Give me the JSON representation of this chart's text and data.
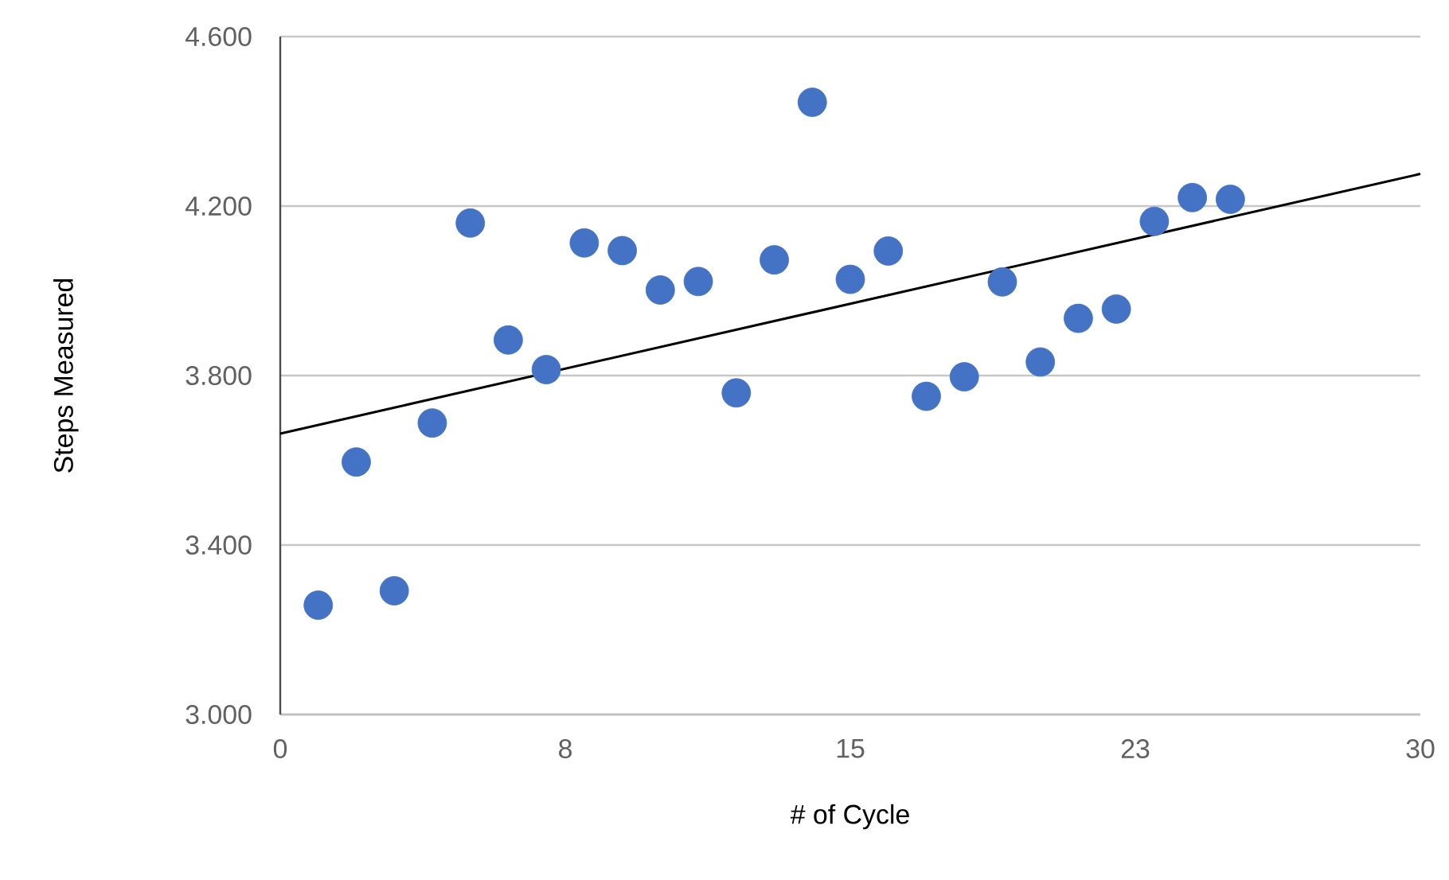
{
  "chart_data": {
    "type": "scatter",
    "xlabel": "# of Cycle",
    "ylabel": "Steps Measured",
    "xlim": [
      0,
      30
    ],
    "xticks": [
      0,
      {
        "value": 7.5,
        "label": "8"
      },
      15,
      {
        "value": 22.5,
        "label": "23"
      },
      30
    ],
    "ylim": [
      3000,
      4600
    ],
    "yticks": [
      {
        "value": 3000,
        "label": "3.000"
      },
      {
        "value": 3400,
        "label": "3.400"
      },
      {
        "value": 3800,
        "label": "3.800"
      },
      {
        "value": 4200,
        "label": "4.200"
      },
      {
        "value": 4600,
        "label": "4.600"
      }
    ],
    "grid": "y",
    "series": [
      {
        "marker": "circle",
        "color": "#4472c4",
        "x": [
          1,
          2,
          3,
          4,
          5,
          6,
          7,
          8,
          9,
          10,
          11,
          12,
          13,
          14,
          15,
          16,
          17,
          18,
          19,
          20,
          21,
          22,
          23,
          24,
          25
        ],
        "values": [
          3258,
          3596,
          3292,
          3688,
          4160,
          3884,
          3814,
          4113,
          4095,
          4002,
          4022,
          3759,
          4073,
          4445,
          4027,
          4094,
          3751,
          3797,
          4021,
          3832,
          3935,
          3957,
          4164,
          4220,
          4216
        ]
      },
      {
        "type": "line",
        "marker": "none",
        "color": "#000000",
        "x": [
          0,
          30
        ],
        "values": [
          3663,
          4276
        ]
      }
    ]
  }
}
